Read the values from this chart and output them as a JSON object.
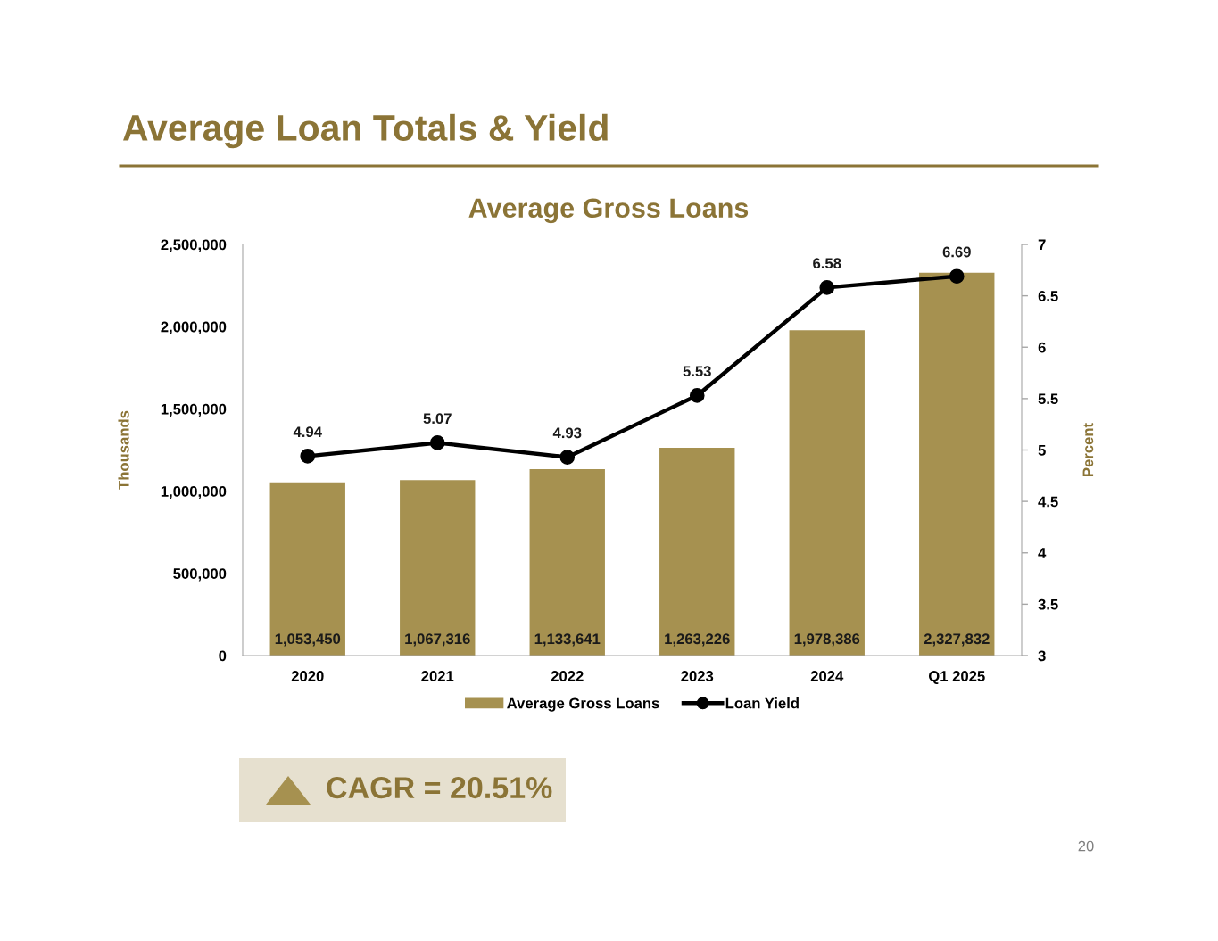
{
  "chart_data": {
    "type": "bar",
    "title": "Average Loan Totals & Yield",
    "subtitle": "Average Gross Loans",
    "ylabel": "Thousands",
    "y2label": "Percent",
    "categories": [
      "2020",
      "2021",
      "2022",
      "2023",
      "2024",
      "Q1 2025"
    ],
    "series": [
      {
        "name": "Average Gross Loans",
        "color": "#a69150",
        "values": [
          1053450,
          1067316,
          1133641,
          1263226,
          1978386,
          2327832
        ],
        "value_labels": [
          "1,053,450",
          "1,067,316",
          "1,133,641",
          "1,263,226",
          "1,978,386",
          "2,327,832"
        ]
      },
      {
        "name": "Loan Yield",
        "type": "line",
        "axis": "y2",
        "color": "#000000",
        "values": [
          4.94,
          5.07,
          4.93,
          5.53,
          6.58,
          6.69
        ],
        "value_labels": [
          "4.94",
          "5.07",
          "4.93",
          "5.53",
          "6.58",
          "6.69"
        ]
      }
    ],
    "marker": "circle",
    "line_style": "solid",
    "ylim": [
      0,
      2500000
    ],
    "yticks": [
      0,
      {
        "value": 500000,
        "label": "500,000"
      },
      {
        "value": 1000000,
        "label": "1,000,000"
      },
      {
        "value": 1500000,
        "label": "1,500,000"
      },
      {
        "value": 2000000,
        "label": "2,000,000"
      },
      {
        "value": 2500000,
        "label": "2,500,000"
      }
    ],
    "y2lim": [
      3,
      7
    ],
    "y2ticks": [
      3,
      3.5,
      4,
      4.5,
      5,
      5.5,
      6,
      6.5,
      7
    ],
    "legend": "bottom",
    "annotations": [
      "CAGR = 20.51%",
      "20"
    ]
  }
}
